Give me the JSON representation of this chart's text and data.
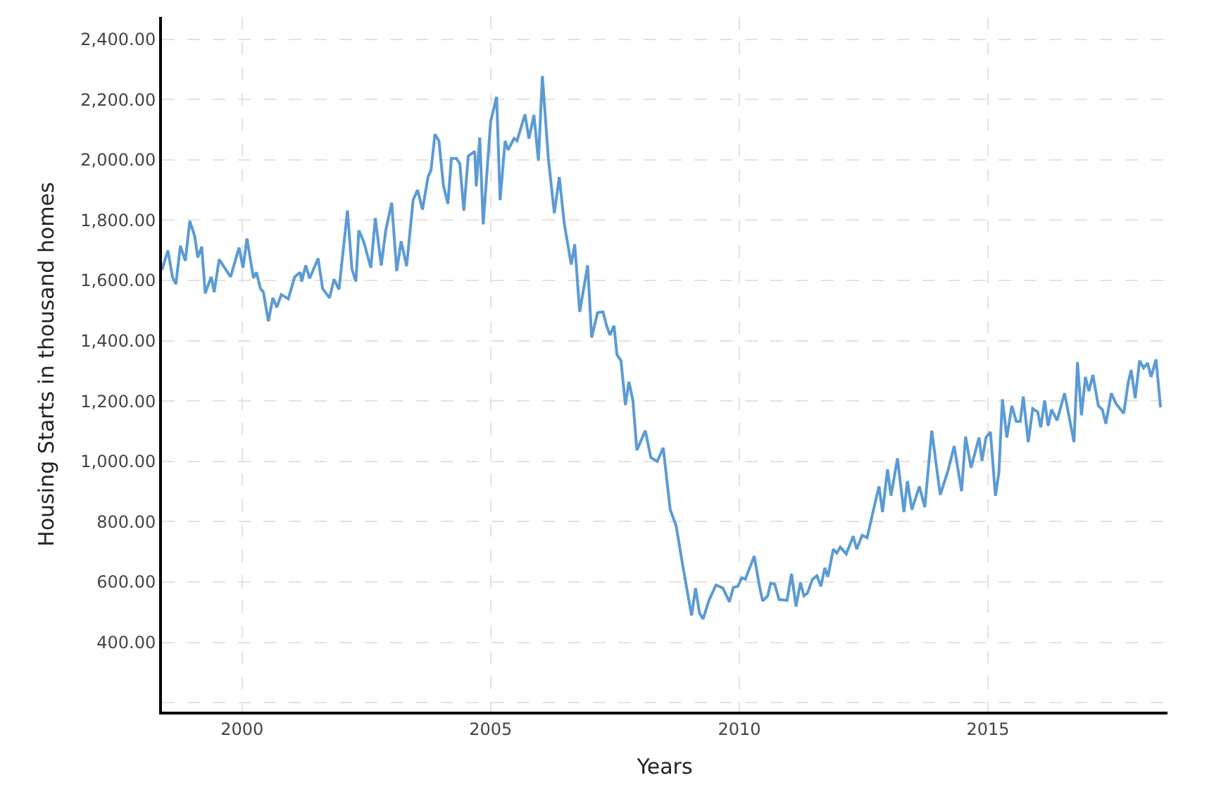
{
  "chart_data": {
    "type": "line",
    "xlabel": "Years",
    "ylabel": "Housing Starts in thousand homes",
    "x": [
      1998.39,
      1998.51,
      1998.6,
      1998.67,
      1998.76,
      1998.86,
      1998.95,
      1999.05,
      1999.11,
      1999.19,
      1999.26,
      1999.38,
      1999.44,
      1999.54,
      1999.77,
      1999.94,
      2000.02,
      2000.1,
      2000.23,
      2000.29,
      2000.37,
      2000.43,
      2000.53,
      2000.62,
      2000.7,
      2000.79,
      2000.93,
      2001.06,
      2001.17,
      2001.2,
      2001.28,
      2001.36,
      2001.53,
      2001.62,
      2001.76,
      2001.85,
      2001.95,
      2002.12,
      2002.21,
      2002.29,
      2002.35,
      2002.45,
      2002.59,
      2002.68,
      2002.8,
      2002.89,
      2003.01,
      2003.11,
      2003.2,
      2003.31,
      2003.44,
      2003.53,
      2003.63,
      2003.74,
      2003.8,
      2003.88,
      2003.96,
      2004.05,
      2004.14,
      2004.21,
      2004.31,
      2004.38,
      2004.46,
      2004.55,
      2004.68,
      2004.71,
      2004.78,
      2004.85,
      2005.0,
      2005.12,
      2005.19,
      2005.29,
      2005.35,
      2005.47,
      2005.53,
      2005.69,
      2005.77,
      2005.87,
      2005.96,
      2006.04,
      2006.16,
      2006.28,
      2006.38,
      2006.48,
      2006.62,
      2006.69,
      2006.79,
      2006.95,
      2007.03,
      2007.15,
      2007.26,
      2007.33,
      2007.4,
      2007.48,
      2007.54,
      2007.62,
      2007.71,
      2007.78,
      2007.86,
      2007.94,
      2008.11,
      2008.22,
      2008.35,
      2008.47,
      2008.61,
      2008.73,
      2008.87,
      2009.04,
      2009.12,
      2009.2,
      2009.27,
      2009.39,
      2009.53,
      2009.67,
      2009.8,
      2009.88,
      2009.97,
      2010.05,
      2010.12,
      2010.3,
      2010.41,
      2010.47,
      2010.57,
      2010.63,
      2010.71,
      2010.8,
      2010.96,
      2011.05,
      2011.14,
      2011.23,
      2011.3,
      2011.37,
      2011.47,
      2011.56,
      2011.64,
      2011.72,
      2011.78,
      2011.89,
      2011.96,
      2012.03,
      2012.15,
      2012.29,
      2012.36,
      2012.47,
      2012.57,
      2012.71,
      2012.81,
      2012.88,
      2012.98,
      2013.05,
      2013.18,
      2013.31,
      2013.38,
      2013.47,
      2013.62,
      2013.73,
      2013.87,
      2014.04,
      2014.2,
      2014.32,
      2014.47,
      2014.55,
      2014.66,
      2014.82,
      2014.88,
      2014.96,
      2015.05,
      2015.15,
      2015.22,
      2015.29,
      2015.38,
      2015.48,
      2015.57,
      2015.65,
      2015.71,
      2015.81,
      2015.9,
      2016.0,
      2016.06,
      2016.14,
      2016.21,
      2016.28,
      2016.39,
      2016.54,
      2016.64,
      2016.73,
      2016.8,
      2016.88,
      2016.96,
      2017.03,
      2017.11,
      2017.22,
      2017.3,
      2017.37,
      2017.48,
      2017.58,
      2017.73,
      2017.82,
      2017.88,
      2017.96,
      2018.05,
      2018.13,
      2018.21,
      2018.28,
      2018.38,
      2018.47
    ],
    "series": [
      {
        "color": "#5b9bd5",
        "values": [
          1635,
          1700,
          1612,
          1588,
          1715,
          1665,
          1797,
          1746,
          1676,
          1712,
          1557,
          1612,
          1561,
          1670,
          1612,
          1709,
          1642,
          1739,
          1608,
          1627,
          1573,
          1561,
          1465,
          1542,
          1511,
          1553,
          1539,
          1612,
          1627,
          1596,
          1650,
          1607,
          1673,
          1573,
          1542,
          1604,
          1570,
          1832,
          1638,
          1596,
          1766,
          1727,
          1642,
          1807,
          1650,
          1766,
          1858,
          1631,
          1730,
          1647,
          1866,
          1900,
          1835,
          1943,
          1966,
          2085,
          2063,
          1915,
          1854,
          2005,
          2005,
          1987,
          1831,
          2013,
          2028,
          1912,
          2074,
          1786,
          2128,
          2209,
          1866,
          2063,
          2033,
          2071,
          2063,
          2151,
          2070,
          2149,
          1997,
          2278,
          2005,
          1823,
          1943,
          1789,
          1653,
          1720,
          1496,
          1650,
          1411,
          1493,
          1496,
          1450,
          1419,
          1450,
          1354,
          1334,
          1187,
          1264,
          1202,
          1037,
          1102,
          1013,
          1000,
          1045,
          840,
          786,
          647,
          489,
          580,
          497,
          477,
          539,
          590,
          580,
          534,
          582,
          586,
          614,
          609,
          686,
          582,
          537,
          554,
          596,
          593,
          542,
          539,
          627,
          519,
          598,
          554,
          563,
          609,
          621,
          586,
          647,
          617,
          709,
          696,
          716,
          693,
          752,
          709,
          755,
          747,
          848,
          917,
          832,
          974,
          886,
          1010,
          832,
          935,
          840,
          917,
          848,
          1102,
          889,
          971,
          1051,
          901,
          1082,
          979,
          1079,
          1002,
          1079,
          1098,
          886,
          963,
          1206,
          1079,
          1184,
          1133,
          1133,
          1215,
          1064,
          1175,
          1164,
          1113,
          1202,
          1118,
          1172,
          1136,
          1226,
          1141,
          1064,
          1329,
          1153,
          1280,
          1233,
          1287,
          1184,
          1172,
          1125,
          1226,
          1190,
          1159,
          1261,
          1303,
          1210,
          1334,
          1310,
          1326,
          1280,
          1338,
          1179
        ]
      }
    ],
    "xlim": [
      1998.39,
      2018.61
    ],
    "xticks": [
      2000,
      2005,
      2010,
      2015
    ],
    "ylim": [
      170,
      2474
    ],
    "yticks": [
      {
        "value": 200,
        "label": null
      },
      {
        "value": 400,
        "label": "400.00"
      },
      {
        "value": 600,
        "label": "600.00"
      },
      {
        "value": 800,
        "label": "800.00"
      },
      {
        "value": 1000,
        "label": "1,000.00"
      },
      {
        "value": 1200,
        "label": "1,200.00"
      },
      {
        "value": 1400,
        "label": "1,400.00"
      },
      {
        "value": 1600,
        "label": "1,600.00"
      },
      {
        "value": 1800,
        "label": "1,800.00"
      },
      {
        "value": 2000,
        "label": "2,000.00"
      },
      {
        "value": 2200,
        "label": "2,200.00"
      },
      {
        "value": 2400,
        "label": "2,400.00"
      }
    ],
    "grid": true,
    "line_style": "solid",
    "marker": "none"
  }
}
